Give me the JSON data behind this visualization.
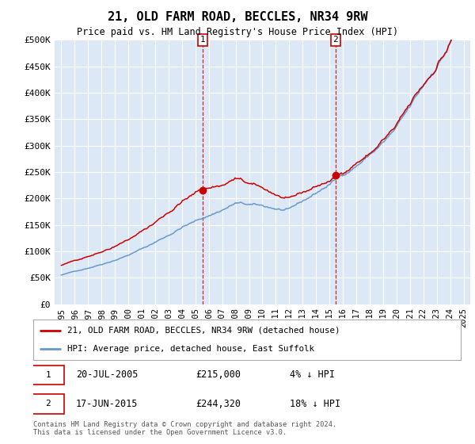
{
  "title": "21, OLD FARM ROAD, BECCLES, NR34 9RW",
  "subtitle": "Price paid vs. HM Land Registry's House Price Index (HPI)",
  "ylim": [
    0,
    500000
  ],
  "yticks": [
    0,
    50000,
    100000,
    150000,
    200000,
    250000,
    300000,
    350000,
    400000,
    450000,
    500000
  ],
  "ytick_labels": [
    "£0",
    "£50K",
    "£100K",
    "£150K",
    "£200K",
    "£250K",
    "£300K",
    "£350K",
    "£400K",
    "£450K",
    "£500K"
  ],
  "background_color": "#dce8f5",
  "line_color_property": "#cc0000",
  "line_color_hpi": "#6699cc",
  "sale1_x": 2005.54,
  "sale1_y": 215000,
  "sale1_label": "1",
  "sale1_date": "20-JUL-2005",
  "sale1_price": "£215,000",
  "sale1_note": "4% ↓ HPI",
  "sale2_x": 2015.46,
  "sale2_y": 244320,
  "sale2_label": "2",
  "sale2_date": "17-JUN-2015",
  "sale2_price": "£244,320",
  "sale2_note": "18% ↓ HPI",
  "legend_property": "21, OLD FARM ROAD, BECCLES, NR34 9RW (detached house)",
  "legend_hpi": "HPI: Average price, detached house, East Suffolk",
  "footer": "Contains HM Land Registry data © Crown copyright and database right 2024.\nThis data is licensed under the Open Government Licence v3.0.",
  "xmin": 1994.5,
  "xmax": 2025.5
}
